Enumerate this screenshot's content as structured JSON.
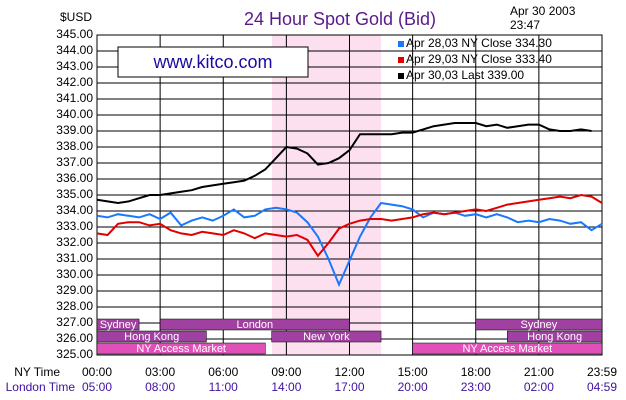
{
  "chart_data": {
    "type": "line",
    "title": "24 Hour Spot Gold (Bid)",
    "ylabel": "$USD",
    "date": "Apr 30 2003",
    "time": "23:47",
    "watermark": "www.kitco.com",
    "xlabel": "NY Time",
    "x2label": "London Time",
    "x": [
      0,
      0.5,
      1,
      1.5,
      2,
      2.5,
      3,
      3.5,
      4,
      4.5,
      5,
      5.5,
      6,
      6.5,
      7,
      7.5,
      8,
      8.5,
      9,
      9.5,
      10,
      10.5,
      11,
      11.5,
      12,
      12.5,
      13,
      13.5,
      14,
      14.5,
      15,
      15.5,
      16,
      16.5,
      17,
      17.5,
      18,
      18.5,
      19,
      19.5,
      20,
      20.5,
      21,
      21.5,
      22,
      22.5,
      23,
      23.5,
      24
    ],
    "xlim": [
      0,
      24
    ],
    "xticks": [
      {
        "value": 0,
        "label": "00:00"
      },
      {
        "value": 3,
        "label": "03:00"
      },
      {
        "value": 6,
        "label": "06:00"
      },
      {
        "value": 9,
        "label": "09:00"
      },
      {
        "value": 12,
        "label": "12:00"
      },
      {
        "value": 15,
        "label": "15:00"
      },
      {
        "value": 18,
        "label": "18:00"
      },
      {
        "value": 21,
        "label": "21:00"
      },
      {
        "value": 24,
        "label": "23:59"
      }
    ],
    "x2ticks": [
      {
        "value": 0,
        "label": "05:00"
      },
      {
        "value": 3,
        "label": "08:00"
      },
      {
        "value": 6,
        "label": "11:00"
      },
      {
        "value": 9,
        "label": "14:00"
      },
      {
        "value": 12,
        "label": "17:00"
      },
      {
        "value": 15,
        "label": "20:00"
      },
      {
        "value": 18,
        "label": "23:00"
      },
      {
        "value": 21,
        "label": "02:00"
      },
      {
        "value": 24,
        "label": "04:59"
      }
    ],
    "ylim": [
      325,
      345
    ],
    "yticks": [
      {
        "value": 325,
        "label": "325.00"
      },
      {
        "value": 326,
        "label": "326.00"
      },
      {
        "value": 327,
        "label": "327.00"
      },
      {
        "value": 328,
        "label": "328.00"
      },
      {
        "value": 329,
        "label": "329.00"
      },
      {
        "value": 330,
        "label": "330.00"
      },
      {
        "value": 331,
        "label": "331.00"
      },
      {
        "value": 332,
        "label": "332.00"
      },
      {
        "value": 333,
        "label": "333.00"
      },
      {
        "value": 334,
        "label": "334.00"
      },
      {
        "value": 335,
        "label": "335.00"
      },
      {
        "value": 336,
        "label": "336.00"
      },
      {
        "value": 337,
        "label": "337.00"
      },
      {
        "value": 338,
        "label": "338.00"
      },
      {
        "value": 339,
        "label": "339.00"
      },
      {
        "value": 340,
        "label": "340.00"
      },
      {
        "value": 341,
        "label": "341.00"
      },
      {
        "value": 342,
        "label": "342.00"
      },
      {
        "value": 343,
        "label": "343.00"
      },
      {
        "value": 344,
        "label": "344.00"
      },
      {
        "value": 345,
        "label": "345.00"
      }
    ],
    "grid": true,
    "series": [
      {
        "name": "Apr 28,03  NY Close 334.30",
        "color": "#1a78ff",
        "values": [
          333.7,
          333.6,
          333.8,
          333.7,
          333.6,
          333.8,
          333.5,
          333.9,
          333.1,
          333.4,
          333.6,
          333.4,
          333.7,
          334.1,
          333.6,
          333.7,
          334.1,
          334.2,
          334.1,
          333.9,
          333.3,
          332.4,
          331.0,
          329.4,
          330.9,
          332.4,
          333.6,
          334.5,
          334.4,
          334.3,
          334.1,
          333.6,
          333.9,
          333.8,
          333.9,
          333.7,
          333.8,
          333.6,
          333.8,
          333.6,
          333.3,
          333.4,
          333.3,
          333.5,
          333.4,
          333.2,
          333.3,
          332.8,
          333.2
        ]
      },
      {
        "name": "Apr 29,03  NY Close 333.40",
        "color": "#e00000",
        "values": [
          332.6,
          332.5,
          333.2,
          333.3,
          333.3,
          333.1,
          333.2,
          332.8,
          332.6,
          332.5,
          332.7,
          332.6,
          332.5,
          332.8,
          332.6,
          332.3,
          332.6,
          332.5,
          332.4,
          332.5,
          332.2,
          331.2,
          332.0,
          332.9,
          333.2,
          333.4,
          333.5,
          333.5,
          333.4,
          333.5,
          333.6,
          333.8,
          333.9,
          333.8,
          333.9,
          334.0,
          334.1,
          334.0,
          334.2,
          334.4,
          334.5,
          334.6,
          334.7,
          334.8,
          334.9,
          334.8,
          335.0,
          334.9,
          334.5
        ]
      },
      {
        "name": "Apr 30,03  Last 339.00",
        "color": "#000000",
        "values": [
          334.7,
          334.6,
          334.5,
          334.6,
          334.8,
          335.0,
          335.0,
          335.1,
          335.2,
          335.3,
          335.5,
          335.6,
          335.7,
          335.8,
          335.9,
          336.2,
          336.6,
          337.3,
          338.0,
          337.9,
          337.6,
          336.9,
          337.0,
          337.3,
          337.8,
          338.8,
          338.8,
          338.8,
          338.8,
          338.9,
          338.9,
          339.1,
          339.3,
          339.4,
          339.5,
          339.5,
          339.5,
          339.3,
          339.4,
          339.2,
          339.3,
          339.4,
          339.4,
          339.1,
          339.0,
          339.0,
          339.1,
          339.0,
          null
        ]
      }
    ],
    "sessions": [
      {
        "name": "Sydney",
        "start": 0,
        "end": 2,
        "row": 0,
        "color": "#a040a0"
      },
      {
        "name": "London",
        "start": 3,
        "end": 12,
        "row": 0,
        "color": "#a040a0"
      },
      {
        "name": "Sydney",
        "start": 18,
        "end": 24,
        "row": 0,
        "color": "#a040a0"
      },
      {
        "name": "Hong Kong",
        "start": 0,
        "end": 5.2,
        "row": 1,
        "color": "#a040a0"
      },
      {
        "name": "New York",
        "start": 8.3,
        "end": 13.5,
        "row": 1,
        "color": "#a040a0"
      },
      {
        "name": "Hong Kong",
        "start": 19.5,
        "end": 24,
        "row": 1,
        "color": "#a040a0"
      },
      {
        "name": "NY Access Market",
        "start": 0,
        "end": 8,
        "row": 2,
        "color": "#e050b8"
      },
      {
        "name": "NY Access Market",
        "start": 15,
        "end": 24,
        "row": 2,
        "color": "#e050b8"
      }
    ]
  }
}
